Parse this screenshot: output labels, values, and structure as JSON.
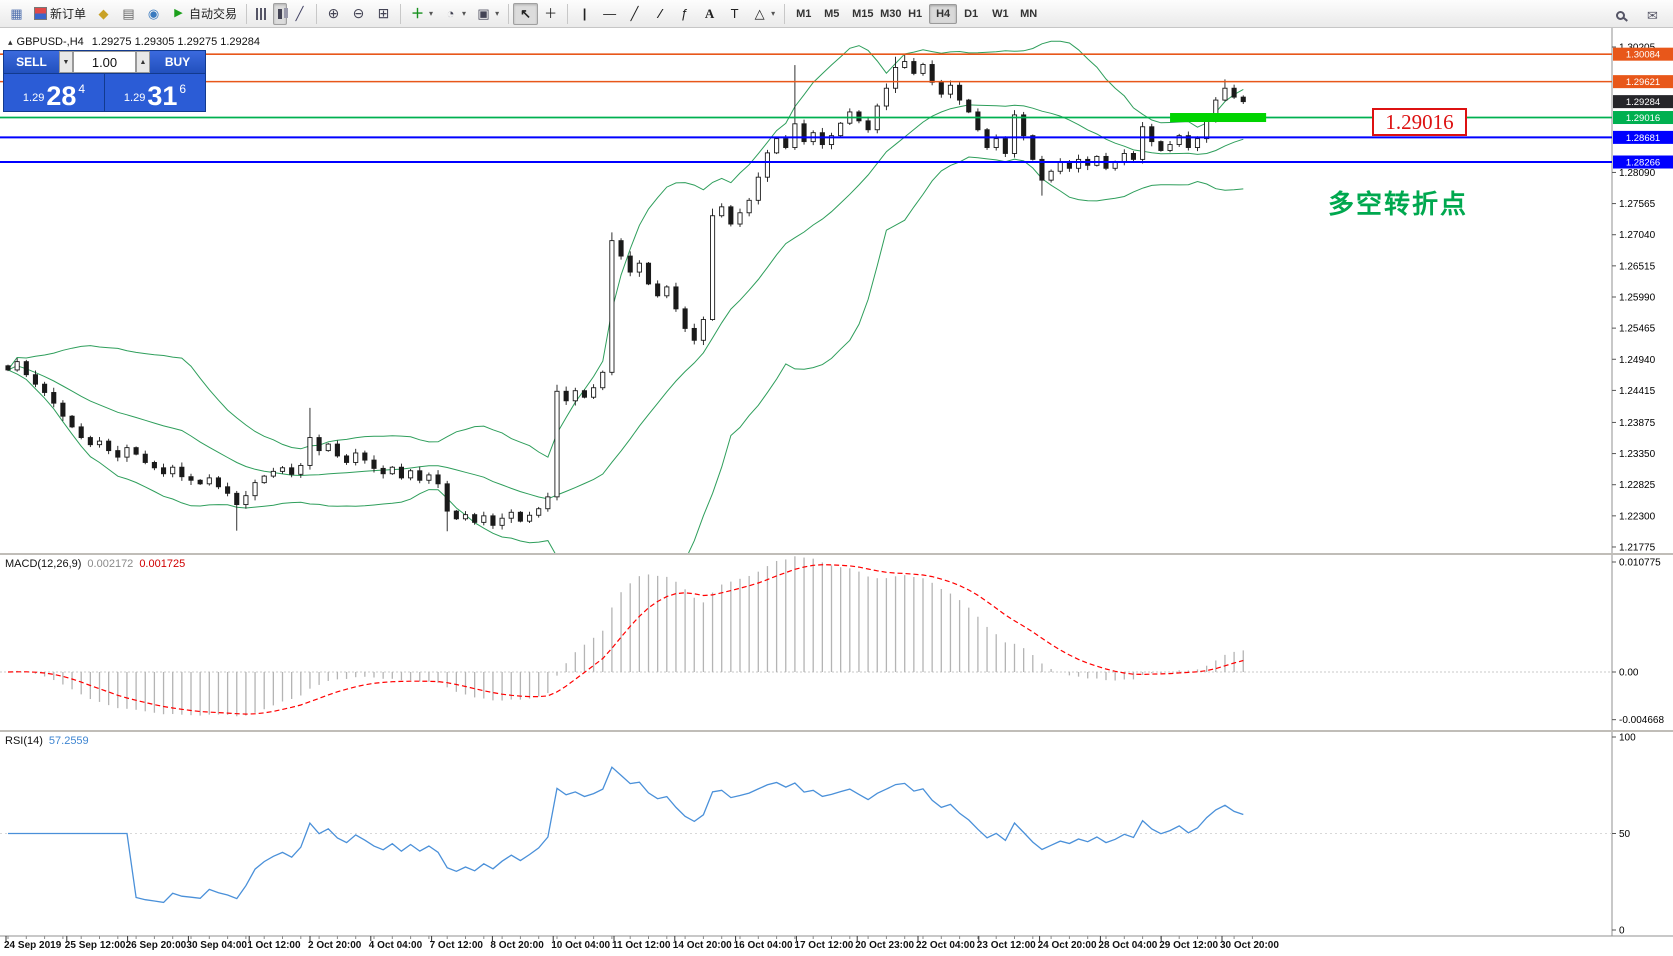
{
  "colors": {
    "candle_outline": "#1a1a1a",
    "up_candle": "#ffffff",
    "down_candle": "#1a1a1a",
    "bollinger": "#2e9e5b",
    "orange_line": "#e8571a",
    "green_line": "#00b050",
    "blue_line": "#0000ff",
    "highlight_green": "#00d400",
    "macd_bar": "#b4b4b4",
    "macd_signal": "#ff0000",
    "rsi_line": "#4a90d9",
    "current_price_tag": "#26262a",
    "callout_red": "#dd1111",
    "note_green": "#00a84f"
  },
  "header": {
    "collapse_icon": "▴",
    "symbol": "GBPUSD-,H4",
    "ohlc": "1.29275 1.29305 1.29275 1.29284"
  },
  "trade_panel": {
    "sell": "SELL",
    "buy": "BUY",
    "volume": "1.00",
    "dd_down": "▼",
    "dd_up": "▲",
    "sell_small": "1.29",
    "sell_big": "28",
    "sell_sup": "4",
    "buy_small": "1.29",
    "buy_big": "31",
    "buy_sup": "6"
  },
  "indicators": {
    "macd_name": "MACD(12,26,9)",
    "macd_val": "0.002172",
    "macd_signal": "0.001725",
    "rsi_name": "RSI(14)",
    "rsi_val": "57.2559"
  },
  "annotations": {
    "callout": "1.29016",
    "note": "多空转折点"
  },
  "toolbar": {
    "groups": [
      {
        "items": [
          {
            "name": "new-chart",
            "icon": "new-chart"
          },
          {
            "name": "new-order",
            "icon": "new-order",
            "label": "新订单"
          },
          {
            "name": "mql-wizard",
            "icon": "hat"
          },
          {
            "name": "market-watch",
            "icon": "layers"
          },
          {
            "name": "navigator",
            "icon": "globe"
          },
          {
            "name": "autotrading",
            "icon": "play",
            "label": "自动交易"
          }
        ]
      },
      {
        "items": [
          {
            "name": "bar-chart-mode",
            "icon": "bars"
          },
          {
            "name": "candlestick-mode",
            "icon": "candles",
            "pressed": true
          },
          {
            "name": "line-chart-mode",
            "icon": "line"
          }
        ]
      },
      {
        "items": [
          {
            "name": "zoom-in",
            "icon": "zoom-in"
          },
          {
            "name": "zoom-out",
            "icon": "zoom-out"
          },
          {
            "name": "tile-windows",
            "icon": "tile"
          }
        ]
      },
      {
        "items": [
          {
            "name": "indicators",
            "icon": "plus",
            "dropdown": true
          },
          {
            "name": "periods",
            "icon": "clock",
            "dropdown": true
          },
          {
            "name": "templates",
            "icon": "template",
            "dropdown": true
          }
        ]
      },
      {
        "items": [
          {
            "name": "cursor",
            "icon": "cursor",
            "pressed": true
          },
          {
            "name": "crosshair",
            "icon": "crosshair"
          }
        ]
      },
      {
        "items": [
          {
            "name": "vertical-line",
            "icon": "vline"
          },
          {
            "name": "horizontal-line",
            "icon": "hline"
          },
          {
            "name": "trendline",
            "icon": "trend"
          },
          {
            "name": "channel",
            "icon": "channel"
          },
          {
            "name": "fibonacci",
            "icon": "fibo"
          },
          {
            "name": "text",
            "icon": "text"
          },
          {
            "name": "text-label",
            "icon": "label"
          },
          {
            "name": "shapes",
            "icon": "shapes",
            "dropdown": true
          }
        ]
      }
    ],
    "timeframes": [
      {
        "label": "M1"
      },
      {
        "label": "M5"
      },
      {
        "label": "M15"
      },
      {
        "label": "M30"
      },
      {
        "label": "H1"
      },
      {
        "label": "H4",
        "active": true
      },
      {
        "label": "D1"
      },
      {
        "label": "W1"
      },
      {
        "label": "MN"
      }
    ],
    "right_icons": [
      {
        "name": "search",
        "icon": "magnifier"
      },
      {
        "name": "messages",
        "icon": "mail"
      }
    ]
  },
  "time_axis": [
    "24 Sep 2019",
    "25 Sep 12:00",
    "26 Sep 20:00",
    "30 Sep 04:00",
    "1 Oct 12:00",
    "2 Oct 20:00",
    "4 Oct 04:00",
    "7 Oct 12:00",
    "8 Oct 20:00",
    "10 Oct 04:00",
    "11 Oct 12:00",
    "14 Oct 20:00",
    "16 Oct 04:00",
    "17 Oct 12:00",
    "20 Oct 23:00",
    "22 Oct 04:00",
    "23 Oct 12:00",
    "24 Oct 20:00",
    "28 Oct 04:00",
    "29 Oct 12:00",
    "30 Oct 20:00"
  ],
  "chart_data": [
    {
      "type": "candlestick",
      "symbol": "GBPUSD-",
      "timeframe": "H4",
      "ohlc_display": {
        "open": 1.29275,
        "high": 1.29305,
        "low": 1.29275,
        "close": 1.29284
      },
      "first_open": 1.2483,
      "closes": [
        1.2476,
        1.249,
        1.2468,
        1.2452,
        1.2438,
        1.242,
        1.2398,
        1.238,
        1.2362,
        1.235,
        1.2356,
        1.234,
        1.2329,
        1.2345,
        1.2334,
        1.232,
        1.2311,
        1.2301,
        1.2312,
        1.2296,
        1.229,
        1.2284,
        1.2294,
        1.2279,
        1.2268,
        1.2249,
        1.2264,
        1.2286,
        1.2297,
        1.2305,
        1.2311,
        1.23,
        1.2315,
        1.2362,
        1.234,
        1.2351,
        1.2331,
        1.232,
        1.2336,
        1.2324,
        1.231,
        1.2301,
        1.2312,
        1.2294,
        1.2306,
        1.229,
        1.2299,
        1.2284,
        1.2238,
        1.2225,
        1.2232,
        1.2219,
        1.223,
        1.2214,
        1.2226,
        1.2236,
        1.2221,
        1.2231,
        1.2242,
        1.2262,
        1.244,
        1.2424,
        1.2441,
        1.243,
        1.2446,
        1.2472,
        1.2694,
        1.2668,
        1.2641,
        1.2656,
        1.2621,
        1.2601,
        1.2616,
        1.2579,
        1.2546,
        1.2526,
        1.2561,
        1.2736,
        1.2751,
        1.2722,
        1.2741,
        1.2762,
        1.2801,
        1.2842,
        1.2866,
        1.2851,
        1.2891,
        1.2861,
        1.2876,
        1.2856,
        1.2871,
        1.2892,
        1.2911,
        1.2896,
        1.2881,
        1.2921,
        1.2951,
        1.2986,
        1.2996,
        1.2976,
        1.2991,
        1.2961,
        1.2941,
        1.2956,
        1.2931,
        1.2911,
        1.2881,
        1.2851,
        1.2866,
        1.2841,
        1.2906,
        1.2871,
        1.2831,
        1.2796,
        1.2811,
        1.2826,
        1.2816,
        1.2831,
        1.2821,
        1.2836,
        1.2816,
        1.2826,
        1.2841,
        1.2831,
        1.2886,
        1.2861,
        1.2846,
        1.2856,
        1.2871,
        1.2851,
        1.2866,
        1.2901,
        1.2931,
        1.2951,
        1.2936,
        1.29284
      ],
      "special_high": {
        "33": 1.2412,
        "60": 1.2451,
        "66": 1.2708,
        "77": 1.2748,
        "86": 1.299,
        "97": 1.3004,
        "98": 1.3008,
        "133": 1.2966
      },
      "special_low": {
        "25": 1.2205,
        "48": 1.2204,
        "60": 1.2256,
        "113": 1.277
      },
      "bollinger": {
        "period": 20,
        "deviation": 2
      },
      "hlines": [
        {
          "price": 1.30084,
          "color": "#e8571a",
          "label": "1.30084",
          "width": 1.6
        },
        {
          "price": 1.29621,
          "color": "#e8571a",
          "label": "1.29621",
          "width": 1.6
        },
        {
          "price": 1.29016,
          "color": "#00b050",
          "label": "1.29016",
          "width": 1.8
        },
        {
          "price": 1.28681,
          "color": "#0000ff",
          "label": "1.28681",
          "width": 2
        },
        {
          "price": 1.28266,
          "color": "#0000ff",
          "label": "1.28266",
          "width": 2
        }
      ],
      "current_price": "1.29284",
      "highlight_zone": {
        "price": 1.29016,
        "from_candle": 127,
        "to_candle": 137.5
      },
      "y_ticks": [
        "1.30205",
        "1.28090",
        "1.27565",
        "1.27040",
        "1.26515",
        "1.25990",
        "1.25465",
        "1.24940",
        "1.24415",
        "1.23875",
        "1.23350",
        "1.22825",
        "1.22300",
        "1.21775"
      ],
      "ylim": [
        1.21691,
        1.30492
      ]
    },
    {
      "type": "macd",
      "label": "MACD(12,26,9)",
      "macd_value": 0.002172,
      "signal_value": 0.001725,
      "fast": 12,
      "slow": 26,
      "signal": 9,
      "ticks": [
        {
          "v": 0.010775,
          "label": "0.010775"
        },
        {
          "v": 0,
          "label": "0.00"
        },
        {
          "v": -0.004668,
          "label": "-0.004668"
        }
      ]
    },
    {
      "type": "rsi",
      "label": "RSI(14)",
      "value": 57.2559,
      "period": 14,
      "ticks": [
        {
          "v": 100,
          "label": "100"
        },
        {
          "v": 50,
          "label": "50"
        },
        {
          "v": 0,
          "label": "0"
        }
      ]
    }
  ]
}
